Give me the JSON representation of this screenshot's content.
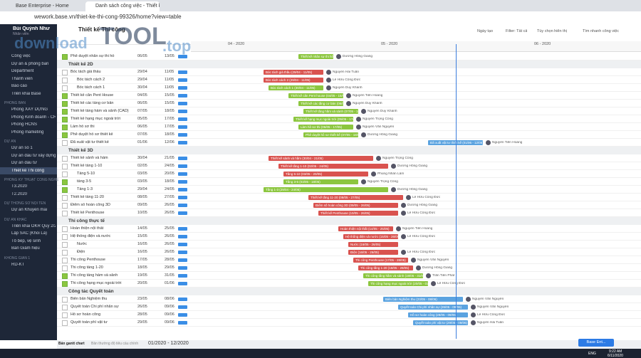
{
  "browser": {
    "tabs": [
      "Base Enterprise - Home",
      "Danh sách công việc - Thiết kế..."
    ],
    "url": "wework.base.vn/thiet-ke-thi-cong-99326/home?view=table"
  },
  "watermark": [
    "download",
    "TOOL",
    ".top"
  ],
  "sidebar": {
    "user": "Bùi Quỳnh Như",
    "role": "Nhân viên",
    "sections": [
      {
        "items": [
          "Công việc",
          "Dự án & phòng ban",
          "Department",
          "Thành viên",
          "Báo cáo",
          "Triển khai Base"
        ]
      },
      {
        "title": "PHÒNG BAN",
        "items": [
          "Phòng XÂY DỰNG",
          "Phòng Kinh doanh - CRM",
          "Phòng HCNS",
          "Phòng marketing"
        ]
      },
      {
        "title": "DỰ ÁN",
        "items": [
          "Dự án số 1",
          "Dự án đầu tư xây dựng",
          "Dự án đầu tư",
          "Thiết kế Thi công"
        ]
      },
      {
        "title": "PHÒNG KỸ THUẬT CÔNG NGHỆ",
        "items": [
          "T3.2020",
          "T2.2020"
        ]
      },
      {
        "title": "DỰ THỜNG SƠ NỘI TÊN",
        "items": [
          "Dự án Khuyến mãi"
        ]
      },
      {
        "title": "DỰ ÁN KHÁC",
        "items": [
          "Triển khai OKR Quý 2/20..",
          "Lập SAC (Khối Lá)",
          "Tổ bếp, vệ sinh",
          "Ban Giám hiệu"
        ]
      },
      {
        "title": "KHÔNG GIAN 1",
        "items": [
          "RD-KT"
        ]
      }
    ],
    "active": "Thiết kế Thi công"
  },
  "header": {
    "title": "Thiết kế Thi công",
    "sort": "Ngày tạo",
    "filter": "Filter: Tất cả",
    "options": "Tùy chọn hiển thị",
    "search": "Tìm nhanh công việc",
    "months": [
      "04 - 2020",
      "05 - 2020",
      "06 - 2020"
    ]
  },
  "groups": [
    {
      "tasks": [
        {
          "name": "Phê duyệt nhân sự thi hồ",
          "start": "06/05",
          "end": "13/05",
          "done": true,
          "bar": "Thiết kế nhân sự thi hồ (06/05 - 13/05)",
          "color": "#8cc63f",
          "assignee": "Dương Hồng Giang"
        }
      ]
    },
    {
      "title": "Thiết kế 2D",
      "tasks": [
        {
          "name": "Bóc tách giá thầu",
          "start": "29/04",
          "end": "11/05",
          "bar": "Bóc tách giá thầu (29/04 - 11/05)",
          "color": "#d9534f",
          "assignee": "Nguyễn Hải Tuấn"
        },
        {
          "name": "Bóc tách cách 2",
          "sub": true,
          "start": "29/04",
          "end": "11/05",
          "bar": "Bóc tách cách 2 (29/04 - 11/05)",
          "color": "#d9534f",
          "assignee": "Lê Hữu Công Đức"
        },
        {
          "name": "Bóc tách cách 1",
          "sub": true,
          "start": "30/04",
          "end": "11/05",
          "bar": "Bóc tách cách 1 (30/04 - 11/05)",
          "color": "#8cc63f",
          "assignee": "Nguyễn Duy Khánh"
        },
        {
          "name": "Thiết kế căn Pent House",
          "start": "04/05",
          "end": "15/05",
          "done": true,
          "bar": "Thiết kế căn Pent house (04/05 - 15/05)",
          "color": "#8cc63f",
          "assignee": "Nguyễn Tiến Hoàng"
        },
        {
          "name": "Thiết kế các tầng cơ bản",
          "start": "06/05",
          "end": "15/05",
          "done": true,
          "bar": "Thiết kế các tầng cơ bản (06/05 - 15/05)",
          "color": "#8cc63f",
          "assignee": "Nguyễn Duy Khánh"
        },
        {
          "name": "Thiết kế tầng hầm và sảnh (CAD)",
          "start": "07/05",
          "end": "18/05",
          "done": true,
          "bar": "Thiết kế tầng hầm và sảnh (07/05 - 18/05)",
          "color": "#8cc63f",
          "assignee": "Nguyễn Duy Khánh"
        },
        {
          "name": "Thiết kế hạng mục ngoài trời",
          "start": "05/05",
          "end": "17/05",
          "done": true,
          "bar": "Thiết kế hạng mục ngoài trời (05/05 - 17/05)",
          "color": "#8cc63f",
          "assignee": "Nguyễn Trọng Công"
        },
        {
          "name": "Làm hồ sơ thi",
          "start": "06/05",
          "end": "17/05",
          "done": true,
          "bar": "Làm hồ sơ thi (06/05 - 17/05)",
          "color": "#8cc63f",
          "assignee": "Nguyễn Văn Nguyên"
        },
        {
          "name": "Phê duyệt hồ sơ thiết kế",
          "start": "07/05",
          "end": "18/05",
          "done": true,
          "bar": "Phê duyệt hồ sơ thiết kế (07/05 - 18/05)",
          "color": "#8cc63f",
          "assignee": "Dương Hồng Giang"
        },
        {
          "name": "Đã xuất vật tư thiết kế",
          "start": "01/06",
          "end": "12/06",
          "bar": "Đã xuất vật tư thiết kế (01/06 - 12/06)",
          "color": "#5ba3e0",
          "assignee": "Nguyễn Tiến Hoàng"
        }
      ]
    },
    {
      "title": "Thiết kế 3D",
      "tasks": [
        {
          "name": "Thiết kế sảnh và hầm",
          "start": "30/04",
          "end": "21/05",
          "bar": "Thiết kế sảnh và hầm (30/04 - 21/05)",
          "color": "#d9534f",
          "assignee": "Nguyễn Trọng Công"
        },
        {
          "name": "Thiết kế tầng 1-10",
          "start": "02/05",
          "end": "24/05",
          "bar": "Thiết kế tầng 1-10 (02/05 - 24/05)",
          "color": "#d9534f",
          "assignee": "Dương Hồng Giang"
        },
        {
          "name": "Tầng 5-10",
          "sub": true,
          "start": "03/05",
          "end": "20/05",
          "bar": "Tầng 5-10 (03/05 - 20/05)",
          "color": "#d9534f",
          "assignee": "Phùng Nhân Lâm"
        },
        {
          "name": "tầng 3-5",
          "sub": true,
          "start": "03/05",
          "end": "18/05",
          "done": true,
          "bar": "Tầng 3-5 (03/05 - 18/05)",
          "color": "#8cc63f",
          "assignee": "Nguyễn Trọng Công"
        },
        {
          "name": "Tầng 1-3",
          "sub": true,
          "start": "29/04",
          "end": "24/05",
          "done": true,
          "bar": "Tầng 1-3 (29/04 - 24/05)",
          "color": "#8cc63f",
          "assignee": "Dương Hồng Giang"
        },
        {
          "name": "Thiết kế tầng 11-20",
          "start": "08/05",
          "end": "27/05",
          "bar": "Thiết kế tầng 11-20 (08/05 - 27/05)",
          "color": "#d9534f",
          "assignee": "Lê Hữu Công Đức"
        },
        {
          "name": "Điểm số hoàn công 3D",
          "start": "09/05",
          "end": "26/05",
          "bar": "Điểm số hoàn công 3D (09/05 - 26/05)",
          "color": "#d9534f",
          "assignee": "Dương Hồng Giang"
        },
        {
          "name": "Thiết kế Penthouse",
          "start": "10/05",
          "end": "26/05",
          "bar": "Thiết kế Penthouse (10/05 - 26/05)",
          "color": "#d9534f",
          "assignee": "Lê Hữu Công Đức"
        }
      ]
    },
    {
      "title": "Thi công thực tế",
      "tasks": [
        {
          "name": "Hoàn thiện nội thất",
          "start": "14/05",
          "end": "25/05",
          "bar": "Hoàn thiện nội thất (14/05 - 25/05)",
          "color": "#d9534f",
          "assignee": "Nguyễn Tiến Hoàng"
        },
        {
          "name": "Hệ thống điện và nước",
          "start": "15/05",
          "end": "26/05",
          "bar": "Hệ thống điện và nước (15/05 - 26/05)",
          "color": "#d9534f",
          "assignee": "Lê Hữu Công Đức"
        },
        {
          "name": "Nước",
          "sub": true,
          "start": "16/05",
          "end": "26/05",
          "bar": "Nước (16/05 - 26/05)",
          "color": "#d9534f"
        },
        {
          "name": "Điện",
          "sub": true,
          "start": "16/05",
          "end": "26/05",
          "bar": "Điện (16/05 - 26/05)",
          "color": "#d9534f",
          "assignee": "Lê Hữu Công Đức"
        },
        {
          "name": "Thi công Penthouse",
          "start": "17/05",
          "end": "28/05",
          "bar": "Thi công Penthouse (17/05 - 28/05)",
          "color": "#d9534f",
          "assignee": "Nguyễn Văn Nguyên"
        },
        {
          "name": "Thi công tầng 1-20",
          "start": "18/05",
          "end": "29/05",
          "bar": "Thi công tầng 1-20 (18/05 - 29/05)",
          "color": "#d9534f",
          "assignee": "Dương Hồng Giang"
        },
        {
          "name": "Thi công tầng hầm và sảnh",
          "start": "19/05",
          "end": "31/05",
          "done": true,
          "bar": "Thi công tầng hầm và sảnh (19/05 - 31/05)",
          "color": "#8cc63f",
          "assignee": "Trần Tiến Phát"
        },
        {
          "name": "Thi công hạng mục ngoài trời",
          "start": "20/05",
          "end": "01/06",
          "done": true,
          "bar": "Thi công hạng mục ngoài trời (20/05 - 01/06)",
          "color": "#8cc63f",
          "assignee": "Lê Hữu Công Đức"
        }
      ]
    },
    {
      "title": "Công tác Quyết toán",
      "tasks": [
        {
          "name": "Biên bản Nghiệm thu",
          "start": "23/05",
          "end": "08/06",
          "bar": "Biên bản Nghiệm thu (23/05 - 08/06)",
          "color": "#5ba3e0",
          "assignee": "Nguyễn Văn Nguyên"
        },
        {
          "name": "Quyết toán Chi phí nhân sự",
          "start": "26/05",
          "end": "09/06",
          "bar": "Quyết toán Chi phí nhân sự (26/05 - 09/06)",
          "color": "#5ba3e0",
          "assignee": "Nguyễn Văn Nguyên"
        },
        {
          "name": "Hồ sơ hoàn công",
          "start": "28/05",
          "end": "09/06",
          "bar": "Hồ sơ hoàn công (28/05 - 09/06)",
          "color": "#5ba3e0",
          "assignee": "Lê Hữu Công Đức"
        },
        {
          "name": "Quyết toán phí vật tư",
          "start": "29/05",
          "end": "09/06",
          "bar": "Quyết toán phí vật tư (29/05 - 09/06)",
          "color": "#5ba3e0",
          "assignee": "Nguyễn Hải Tuấn"
        }
      ]
    }
  ],
  "footer": {
    "tabs": [
      "Bản gantt chart",
      "Bản thường độ tiêu cầu chính"
    ],
    "range": "01/2020 - 12/2020",
    "chat": "Base Ent..."
  },
  "taskbar": {
    "lang": "ENG",
    "time": "9:22 AM",
    "date": "6/11/2020"
  }
}
